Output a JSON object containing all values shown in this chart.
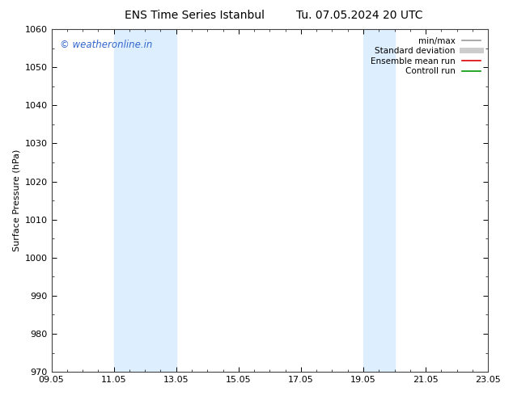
{
  "title_left": "ENS Time Series Istanbul",
  "title_right": "Tu. 07.05.2024 20 UTC",
  "ylabel": "Surface Pressure (hPa)",
  "ylim": [
    970,
    1060
  ],
  "yticks": [
    970,
    980,
    990,
    1000,
    1010,
    1020,
    1030,
    1040,
    1050,
    1060
  ],
  "xlim": [
    0,
    14
  ],
  "xtick_labels": [
    "09.05",
    "11.05",
    "13.05",
    "15.05",
    "17.05",
    "19.05",
    "21.05",
    "23.05"
  ],
  "xtick_positions": [
    0,
    2,
    4,
    6,
    8,
    10,
    12,
    14
  ],
  "shaded_regions": [
    {
      "xmin": 2.0,
      "xmax": 4.0
    },
    {
      "xmin": 10.0,
      "xmax": 11.0
    }
  ],
  "shade_color": "#ddeeff",
  "watermark": "© weatheronline.in",
  "watermark_color": "#3366cc",
  "legend_items": [
    {
      "label": "min/max",
      "color": "#999999",
      "lw": 1.2,
      "style": "solid"
    },
    {
      "label": "Standard deviation",
      "color": "#cccccc",
      "lw": 5,
      "style": "solid"
    },
    {
      "label": "Ensemble mean run",
      "color": "#dd0000",
      "lw": 1.2,
      "style": "solid"
    },
    {
      "label": "Controll run",
      "color": "#009900",
      "lw": 1.2,
      "style": "solid"
    }
  ],
  "background_color": "#ffffff",
  "title_fontsize": 10,
  "axis_fontsize": 8,
  "tick_fontsize": 8,
  "legend_fontsize": 7.5
}
